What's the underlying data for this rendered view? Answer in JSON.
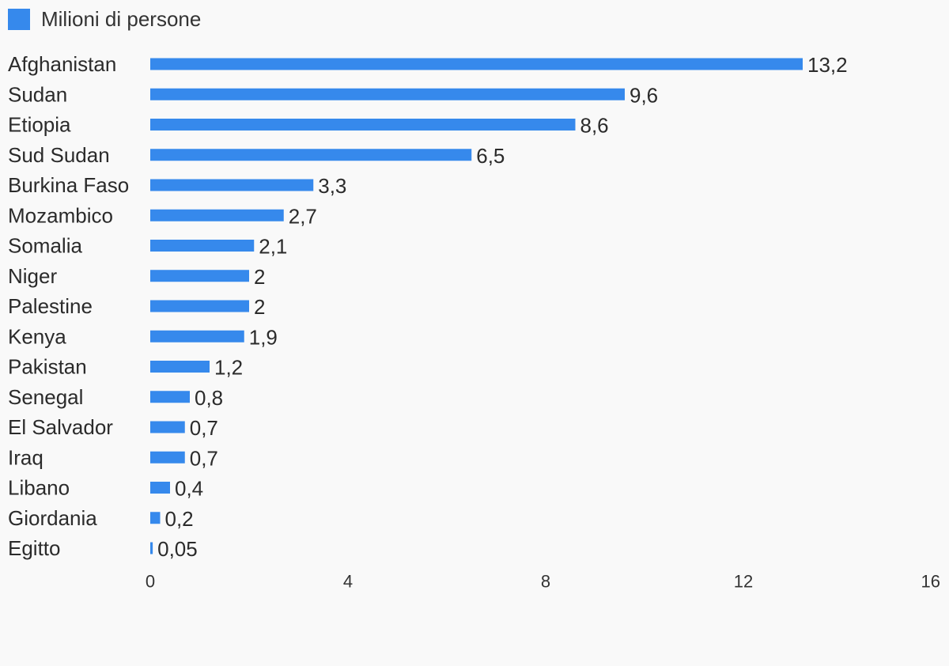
{
  "chart_data": {
    "type": "bar",
    "orientation": "horizontal",
    "categories": [
      "Afghanistan",
      "Sudan",
      "Etiopia",
      "Sud Sudan",
      "Burkina Faso",
      "Mozambico",
      "Somalia",
      "Niger",
      "Palestine",
      "Kenya",
      "Pakistan",
      "Senegal",
      "El Salvador",
      "Iraq",
      "Libano",
      "Giordania",
      "Egitto"
    ],
    "values": [
      13.2,
      9.6,
      8.6,
      6.5,
      3.3,
      2.7,
      2.1,
      2,
      2,
      1.9,
      1.2,
      0.8,
      0.7,
      0.7,
      0.4,
      0.2,
      0.05
    ],
    "value_labels": [
      "13,2",
      "9,6",
      "8,6",
      "6,5",
      "3,3",
      "2,7",
      "2,1",
      "2",
      "2",
      "1,9",
      "1,2",
      "0,8",
      "0,7",
      "0,7",
      "0,4",
      "0,2",
      "0,05"
    ],
    "series": [
      {
        "name": "Milioni di persone",
        "color": "#3689ec"
      }
    ],
    "xlim": [
      0,
      16
    ],
    "ticks": [
      0,
      4,
      8,
      12,
      16
    ],
    "tick_labels": [
      "0",
      "4",
      "8",
      "12",
      "16"
    ],
    "grid": false,
    "legend_position": "top-left"
  }
}
